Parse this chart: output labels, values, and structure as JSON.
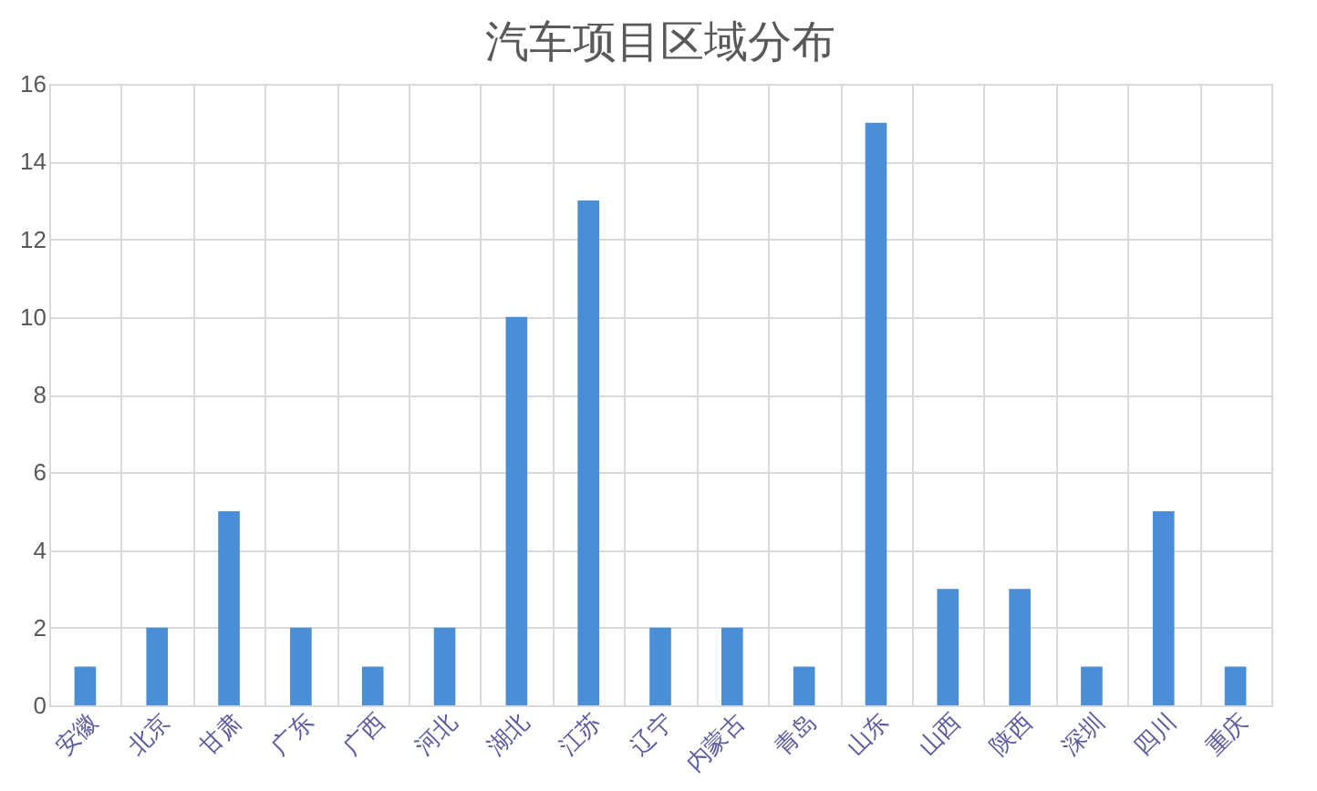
{
  "chart_data": {
    "type": "bar",
    "title": "汽车项目区域分布",
    "categories": [
      "安徽",
      "北京",
      "甘肃",
      "广东",
      "广西",
      "河北",
      "湖北",
      "江苏",
      "辽宁",
      "内蒙古",
      "青岛",
      "山东",
      "山西",
      "陕西",
      "深圳",
      "四川",
      "重庆"
    ],
    "values": [
      1,
      2,
      5,
      2,
      1,
      2,
      10,
      13,
      2,
      2,
      1,
      15,
      3,
      3,
      1,
      5,
      1
    ],
    "color": "#4a8fd6",
    "ylim": [
      0,
      16
    ],
    "yticks": [
      0,
      2,
      4,
      6,
      8,
      10,
      12,
      14,
      16
    ],
    "grid": true
  }
}
